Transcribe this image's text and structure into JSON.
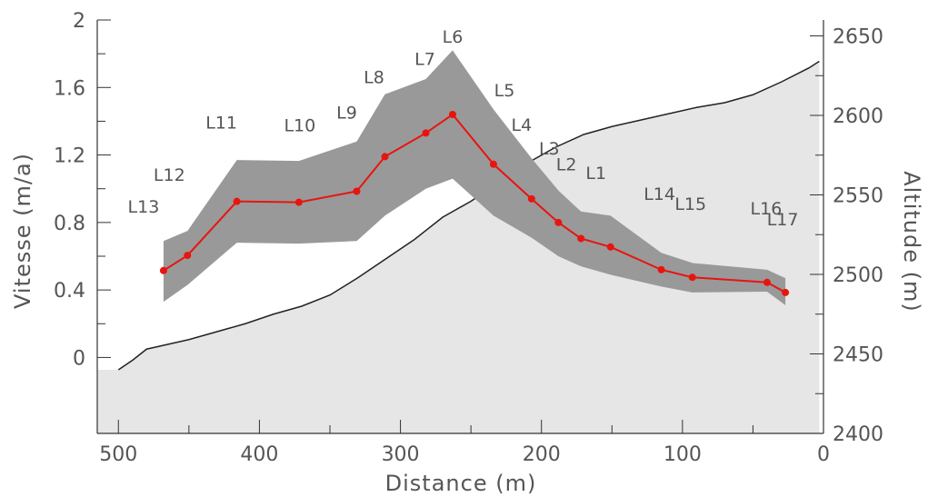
{
  "chart_data": {
    "type": "line",
    "xlabel": "Distance (m)",
    "ylabel_left": "Vitesse (m/a)",
    "ylabel_right": "Altitude (m)",
    "xlim": [
      515,
      0
    ],
    "ylim_left": [
      -0.45,
      2
    ],
    "ylim_right": [
      2400,
      2660
    ],
    "x_ticks": [
      500,
      400,
      300,
      200,
      100,
      0
    ],
    "y_left_ticks": [
      0,
      0.4,
      0.8,
      1.2,
      1.6,
      2
    ],
    "y_left_tick_labels": [
      "0",
      "0.4",
      "0.8",
      "1.2",
      "1.6",
      "2"
    ],
    "y_right_ticks": [
      2400,
      2450,
      2500,
      2550,
      2600,
      2650
    ],
    "y_right_tick_labels": [
      "2400",
      "2450",
      "2500",
      "2550",
      "2600",
      "2650"
    ],
    "grid": false,
    "colors": {
      "velocity": "#e8140f",
      "uncertainty": "#999999",
      "terrain_fill": "#e6e6e6",
      "terrain_line": "#222222",
      "axis": "#333333",
      "text": "#555555"
    },
    "series": [
      {
        "name": "",
        "axis": "left",
        "points": [
          {
            "label": "L13",
            "x": 468,
            "y": 0.515,
            "lo": 0.33,
            "hi": 0.69
          },
          {
            "label": "L12",
            "x": 451,
            "y": 0.605,
            "lo": 0.43,
            "hi": 0.75
          },
          {
            "label": "L11",
            "x": 416,
            "y": 0.925,
            "lo": 0.68,
            "hi": 1.17
          },
          {
            "label": "L10",
            "x": 372,
            "y": 0.92,
            "lo": 0.675,
            "hi": 1.165
          },
          {
            "label": "L9",
            "x": 331,
            "y": 0.985,
            "lo": 0.69,
            "hi": 1.28
          },
          {
            "label": "L8",
            "x": 311,
            "y": 1.19,
            "lo": 0.84,
            "hi": 1.56
          },
          {
            "label": "L7",
            "x": 282,
            "y": 1.33,
            "lo": 1.0,
            "hi": 1.65
          },
          {
            "label": "L6",
            "x": 263,
            "y": 1.44,
            "lo": 1.06,
            "hi": 1.82
          },
          {
            "label": "L5",
            "x": 234,
            "y": 1.145,
            "lo": 0.84,
            "hi": 1.47
          },
          {
            "label": "L4",
            "x": 207,
            "y": 0.94,
            "lo": 0.71,
            "hi": 1.18
          },
          {
            "label": "L3",
            "x": 188,
            "y": 0.8,
            "lo": 0.6,
            "hi": 0.99
          },
          {
            "label": "L2",
            "x": 172,
            "y": 0.705,
            "lo": 0.54,
            "hi": 0.865
          },
          {
            "label": "L1",
            "x": 151,
            "y": 0.655,
            "lo": 0.49,
            "hi": 0.84
          },
          {
            "label": "L14",
            "x": 115,
            "y": 0.52,
            "lo": 0.42,
            "hi": 0.62
          },
          {
            "label": "L15",
            "x": 93,
            "y": 0.475,
            "lo": 0.385,
            "hi": 0.56
          },
          {
            "label": "L16",
            "x": 40,
            "y": 0.445,
            "lo": 0.39,
            "hi": 0.52
          },
          {
            "label": "L17",
            "x": 27,
            "y": 0.385,
            "lo": 0.31,
            "hi": 0.47
          }
        ]
      },
      {
        "name": "",
        "axis": "right",
        "type": "area",
        "points": [
          [
            515,
            2440
          ],
          [
            500,
            2440
          ],
          [
            490,
            2446
          ],
          [
            480,
            2453
          ],
          [
            470,
            2455
          ],
          [
            450,
            2459
          ],
          [
            430,
            2464
          ],
          [
            410,
            2469
          ],
          [
            390,
            2475
          ],
          [
            370,
            2480
          ],
          [
            350,
            2487
          ],
          [
            330,
            2498
          ],
          [
            310,
            2510
          ],
          [
            290,
            2522
          ],
          [
            270,
            2536
          ],
          [
            250,
            2546
          ],
          [
            230,
            2558
          ],
          [
            210,
            2570
          ],
          [
            190,
            2580
          ],
          [
            170,
            2588
          ],
          [
            150,
            2593
          ],
          [
            130,
            2597
          ],
          [
            110,
            2601
          ],
          [
            90,
            2605
          ],
          [
            70,
            2608
          ],
          [
            50,
            2613
          ],
          [
            30,
            2621
          ],
          [
            10,
            2630
          ],
          [
            3,
            2634
          ]
        ]
      }
    ]
  }
}
